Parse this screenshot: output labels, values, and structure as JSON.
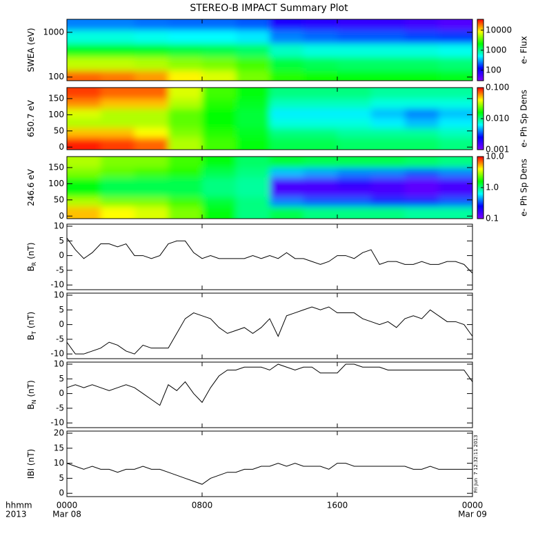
{
  "chart_data": [
    {
      "type": "heatmap",
      "title": "STEREO-B IMPACT Summary Plot",
      "ylabel": [
        "SWEA (eV)"
      ],
      "ylog": true,
      "xlim": [
        0,
        24
      ],
      "ylim": [
        83,
        1950
      ],
      "yticks": [
        100,
        1000
      ],
      "x": [
        1,
        3,
        5,
        7,
        9,
        11,
        13,
        15,
        17,
        19,
        21,
        23
      ],
      "y": [
        100,
        200,
        400,
        800,
        1600
      ],
      "z": [
        [
          20000,
          18000,
          15000,
          9000,
          7000,
          4000,
          2500,
          2200,
          2000,
          2000,
          2000,
          1800
        ],
        [
          6000,
          6000,
          5500,
          4500,
          4000,
          3000,
          1500,
          1300,
          1200,
          1200,
          1200,
          1100
        ],
        [
          1800,
          1800,
          1700,
          1500,
          1400,
          1200,
          700,
          600,
          600,
          600,
          600,
          550
        ],
        [
          600,
          600,
          550,
          500,
          500,
          450,
          250,
          220,
          200,
          200,
          180,
          170
        ],
        [
          250,
          250,
          230,
          220,
          220,
          200,
          90,
          80,
          70,
          70,
          60,
          50
        ]
      ],
      "clabel": "e- Flux",
      "clog": true,
      "clim": [
        30,
        35000
      ],
      "cticks": [
        10000,
        1000,
        100
      ],
      "colormap": [
        "#7f00ff",
        "#0000ff",
        "#00ffff",
        "#00ff00",
        "#ffff00",
        "#ff0000"
      ]
    },
    {
      "type": "heatmap",
      "ylabel": [
        "650.7 eV"
      ],
      "xlim": [
        0,
        24
      ],
      "ylim": [
        -8,
        184
      ],
      "yticks": [
        0,
        50,
        100,
        150
      ],
      "x": [
        1,
        3,
        5,
        7,
        9,
        11,
        13,
        15,
        17,
        19,
        21,
        23
      ],
      "y": [
        15,
        45,
        75,
        105,
        135,
        165
      ],
      "z": [
        [
          0.09,
          0.08,
          0.07,
          0.03,
          0.02,
          0.015,
          0.012,
          0.012,
          0.011,
          0.011,
          0.011,
          0.01
        ],
        [
          0.05,
          0.05,
          0.04,
          0.025,
          0.018,
          0.014,
          0.01,
          0.01,
          0.009,
          0.009,
          0.009,
          0.008
        ],
        [
          0.03,
          0.03,
          0.03,
          0.022,
          0.016,
          0.013,
          0.007,
          0.007,
          0.007,
          0.006,
          0.005,
          0.006
        ],
        [
          0.035,
          0.03,
          0.03,
          0.022,
          0.016,
          0.013,
          0.006,
          0.006,
          0.006,
          0.005,
          0.004,
          0.005
        ],
        [
          0.06,
          0.05,
          0.05,
          0.03,
          0.018,
          0.014,
          0.008,
          0.008,
          0.008,
          0.007,
          0.007,
          0.007
        ],
        [
          0.08,
          0.07,
          0.07,
          0.035,
          0.02,
          0.015,
          0.01,
          0.01,
          0.01,
          0.009,
          0.009,
          0.009
        ]
      ],
      "clabel": "e- Ph Sp Dens",
      "clog": true,
      "clim": [
        0.001,
        0.1
      ],
      "cticks": [
        {
          "value": 0.1,
          "label": "0.100"
        },
        {
          "value": 0.01,
          "label": "0.010"
        },
        0.001
      ],
      "colormap": [
        "#7f00ff",
        "#0000ff",
        "#00ffff",
        "#00ff00",
        "#ffff00",
        "#ff0000"
      ]
    },
    {
      "type": "heatmap",
      "ylabel": [
        "246.6 eV"
      ],
      "xlim": [
        0,
        24
      ],
      "ylim": [
        -8,
        184
      ],
      "yticks": [
        0,
        50,
        100,
        150
      ],
      "x": [
        1,
        3,
        5,
        7,
        9,
        11,
        13,
        15,
        17,
        19,
        21,
        23
      ],
      "y": [
        15,
        45,
        75,
        105,
        135,
        165
      ],
      "z": [
        [
          5,
          4,
          3.5,
          2.5,
          1.5,
          1,
          1.2,
          1,
          1,
          1,
          0.9,
          0.9
        ],
        [
          3,
          2.5,
          2.5,
          2,
          1.3,
          1,
          0.4,
          0.35,
          0.35,
          0.3,
          0.3,
          0.35
        ],
        [
          1.5,
          1.2,
          1.2,
          1.2,
          1,
          0.9,
          0.15,
          0.15,
          0.15,
          0.15,
          0.13,
          0.15
        ],
        [
          1.5,
          1.2,
          1.2,
          1.2,
          1,
          0.9,
          0.15,
          0.15,
          0.18,
          0.15,
          0.13,
          0.15
        ],
        [
          2.5,
          2.2,
          2,
          1.8,
          1.2,
          1,
          0.5,
          0.45,
          0.4,
          0.4,
          0.35,
          0.4
        ],
        [
          3,
          2.5,
          2.5,
          2,
          1.5,
          1.1,
          1.3,
          1.2,
          1.2,
          1.2,
          1.1,
          1
        ]
      ],
      "clabel": "e- Ph Sp Dens",
      "clog": true,
      "clim": [
        0.1,
        10
      ],
      "cticks": [
        {
          "value": 10,
          "label": "10.0"
        },
        {
          "value": 1,
          "label": "1.0"
        },
        0.1
      ],
      "colormap": [
        "#7f00ff",
        "#0000ff",
        "#00ffff",
        "#00ff00",
        "#ffff00",
        "#ff0000"
      ]
    },
    {
      "type": "line",
      "ylabel": [
        "B",
        "R",
        "(nT)"
      ],
      "xlim": [
        0,
        24
      ],
      "ylim": [
        -11.6,
        10.7
      ],
      "yticks": [
        10,
        5,
        0,
        -5,
        -10
      ],
      "color": "#000000",
      "x": [
        0,
        0.5,
        1,
        1.5,
        2,
        2.5,
        3,
        3.5,
        4,
        4.5,
        5,
        5.5,
        6,
        6.5,
        7,
        7.5,
        8,
        8.5,
        9,
        9.5,
        10,
        10.5,
        11,
        11.5,
        12,
        12.5,
        13,
        13.5,
        14,
        14.5,
        15,
        15.5,
        16,
        16.5,
        17,
        17.5,
        18,
        18.5,
        19,
        19.5,
        20,
        20.5,
        21,
        21.5,
        22,
        22.5,
        23,
        23.5,
        24
      ],
      "values": [
        6,
        2,
        -1,
        1,
        4,
        4,
        3,
        4,
        0,
        0,
        -1,
        0,
        4,
        5,
        5,
        1,
        -1,
        0,
        -1,
        -1,
        -1,
        -1,
        0,
        -1,
        0,
        -1,
        1,
        -1,
        -1,
        -2,
        -3,
        -2,
        0,
        0,
        -1,
        1,
        2,
        -3,
        -2,
        -2,
        -3,
        -3,
        -2,
        -3,
        -3,
        -2,
        -2,
        -3,
        -6
      ]
    },
    {
      "type": "line",
      "ylabel": [
        "B",
        "T",
        "(nT)"
      ],
      "xlim": [
        0,
        24
      ],
      "ylim": [
        -11.6,
        10.7
      ],
      "yticks": [
        10,
        5,
        0,
        -5,
        -10
      ],
      "color": "#000000",
      "x": [
        0,
        0.5,
        1,
        1.5,
        2,
        2.5,
        3,
        3.5,
        4,
        4.5,
        5,
        5.5,
        6,
        6.5,
        7,
        7.5,
        8,
        8.5,
        9,
        9.5,
        10,
        10.5,
        11,
        11.5,
        12,
        12.5,
        13,
        13.5,
        14,
        14.5,
        15,
        15.5,
        16,
        16.5,
        17,
        17.5,
        18,
        18.5,
        19,
        19.5,
        20,
        20.5,
        21,
        21.5,
        22,
        22.5,
        23,
        23.5,
        24
      ],
      "values": [
        -6,
        -10,
        -10,
        -9,
        -8,
        -6,
        -7,
        -9,
        -10,
        -7,
        -8,
        -8,
        -8,
        -3,
        2,
        4,
        3,
        2,
        -1,
        -3,
        -2,
        -1,
        -3,
        -1,
        2,
        -4,
        3,
        4,
        5,
        6,
        5,
        6,
        4,
        4,
        4,
        2,
        1,
        0,
        1,
        -1,
        2,
        3,
        2,
        5,
        3,
        1,
        1,
        0,
        -4
      ]
    },
    {
      "type": "line",
      "ylabel": [
        "B",
        "N",
        "(nT)"
      ],
      "xlim": [
        0,
        24
      ],
      "ylim": [
        -11.6,
        10.7
      ],
      "yticks": [
        10,
        5,
        0,
        -5,
        -10
      ],
      "color": "#000000",
      "x": [
        0,
        0.5,
        1,
        1.5,
        2,
        2.5,
        3,
        3.5,
        4,
        4.5,
        5,
        5.5,
        6,
        6.5,
        7,
        7.5,
        8,
        8.5,
        9,
        9.5,
        10,
        10.5,
        11,
        11.5,
        12,
        12.5,
        13,
        13.5,
        14,
        14.5,
        15,
        15.5,
        16,
        16.5,
        17,
        17.5,
        18,
        18.5,
        19,
        19.5,
        20,
        20.5,
        21,
        21.5,
        22,
        22.5,
        23,
        23.5,
        24
      ],
      "values": [
        2,
        3,
        2,
        3,
        2,
        1,
        2,
        3,
        2,
        0,
        -2,
        -4,
        3,
        1,
        4,
        0,
        -3,
        2,
        6,
        8,
        8,
        9,
        9,
        9,
        8,
        10,
        9,
        8,
        9,
        9,
        7,
        7,
        7,
        10,
        10,
        9,
        9,
        9,
        8,
        8,
        8,
        8,
        8,
        8,
        8,
        8,
        8,
        8,
        4
      ]
    },
    {
      "type": "line",
      "ylabel": [
        "IBI (nT)"
      ],
      "xlim": [
        0,
        24
      ],
      "ylim": [
        -1.1,
        20.7
      ],
      "yticks": [
        20,
        15,
        10,
        5,
        0
      ],
      "color": "#000000",
      "x": [
        0,
        0.5,
        1,
        1.5,
        2,
        2.5,
        3,
        3.5,
        4,
        4.5,
        5,
        5.5,
        6,
        6.5,
        7,
        7.5,
        8,
        8.5,
        9,
        9.5,
        10,
        10.5,
        11,
        11.5,
        12,
        12.5,
        13,
        13.5,
        14,
        14.5,
        15,
        15.5,
        16,
        16.5,
        17,
        17.5,
        18,
        18.5,
        19,
        19.5,
        20,
        20.5,
        21,
        21.5,
        22,
        22.5,
        23,
        23.5,
        24
      ],
      "values": [
        10,
        9,
        8,
        9,
        8,
        8,
        7,
        8,
        8,
        9,
        8,
        8,
        7,
        6,
        5,
        4,
        3,
        5,
        6,
        7,
        7,
        8,
        8,
        9,
        9,
        10,
        9,
        10,
        9,
        9,
        9,
        8,
        10,
        10,
        9,
        9,
        9,
        9,
        9,
        9,
        9,
        8,
        8,
        9,
        8,
        8,
        8,
        8,
        8
      ],
      "xticks": [
        {
          "value": 0,
          "label": "0000"
        },
        {
          "value": 8,
          "label": "0800"
        },
        {
          "value": 16,
          "label": "1600"
        },
        {
          "value": 24,
          "label": "0000"
        }
      ],
      "date_labels": [
        {
          "value": 0,
          "label": "Mar 08"
        },
        {
          "value": 24,
          "label": "Mar 09"
        }
      ],
      "x_label": "hhmm",
      "x_sublabel": "2013",
      "annotation": "Fri Jun  7 12:32:11 2013"
    }
  ]
}
